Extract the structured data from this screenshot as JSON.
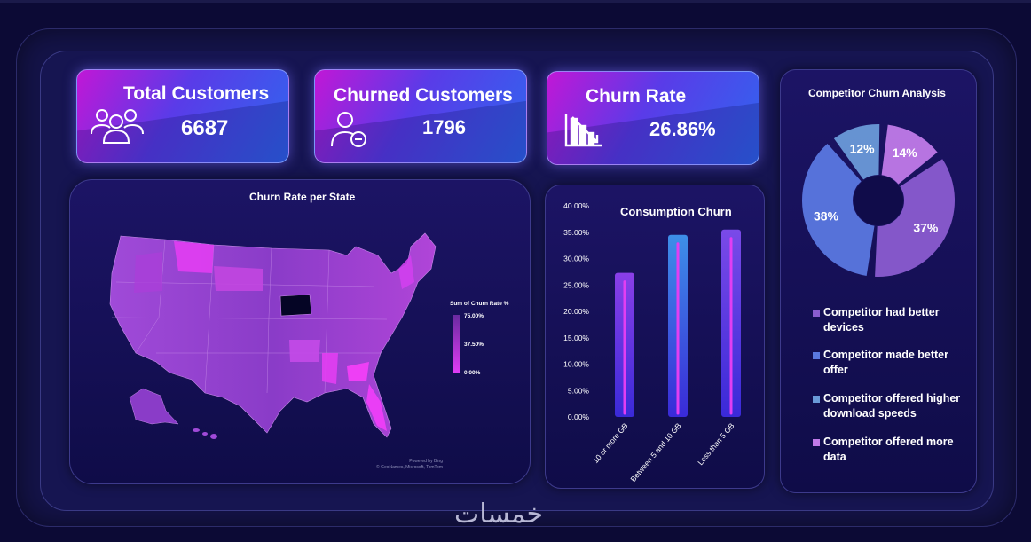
{
  "kpis": {
    "total_customers": {
      "title": "Total Customers",
      "value": "6687",
      "icon": "users-icon"
    },
    "churned_customers": {
      "title": "Churned Customers",
      "value": "1796",
      "icon": "user-minus-icon"
    },
    "churn_rate": {
      "title": "Churn Rate",
      "value": "26.86%",
      "icon": "declining-bar-chart-icon"
    }
  },
  "map": {
    "title": "Churn Rate per State",
    "legend_title": "Sum of Churn Rate %",
    "legend_ticks": [
      "75.00%",
      "37.50%",
      "0.00%"
    ],
    "credit_line1": "Powered by Bing",
    "credit_line2": "© GeoNames, Microsoft, TomTom",
    "colors": {
      "low": "#e03cf5",
      "high": "#6a2aa0",
      "no_data": "#050525"
    }
  },
  "watermark": "خمسات",
  "chart_data": [
    {
      "type": "bar",
      "title": "Consumption Churn",
      "categories": [
        "10 or more GB",
        "Between 5 and 10 GB",
        "Less than 5 GB"
      ],
      "values": [
        27.3,
        34.5,
        35.5
      ],
      "y_tick_labels": [
        "0.00%",
        "5.00%",
        "10.00%",
        "15.00%",
        "20.00%",
        "25.00%",
        "30.00%",
        "35.00%",
        "40.00%"
      ],
      "ylim": [
        0,
        40
      ],
      "bar_colors": [
        "#8a3fe8",
        "#3d8fe8",
        "#7a4ae8"
      ]
    },
    {
      "type": "pie",
      "title": "Competitor Churn Analysis",
      "labels": [
        "Competitor had better devices",
        "Competitor made better offer",
        "Competitor offered higher download speeds",
        "Competitor offered more data"
      ],
      "values": [
        37,
        38,
        12,
        14
      ],
      "value_labels": [
        "37%",
        "38%",
        "12%",
        "14%"
      ],
      "colors": [
        "#8a5cd0",
        "#5a78e0",
        "#6a9ad8",
        "#c07ae8"
      ],
      "legend_position": "bottom"
    }
  ]
}
